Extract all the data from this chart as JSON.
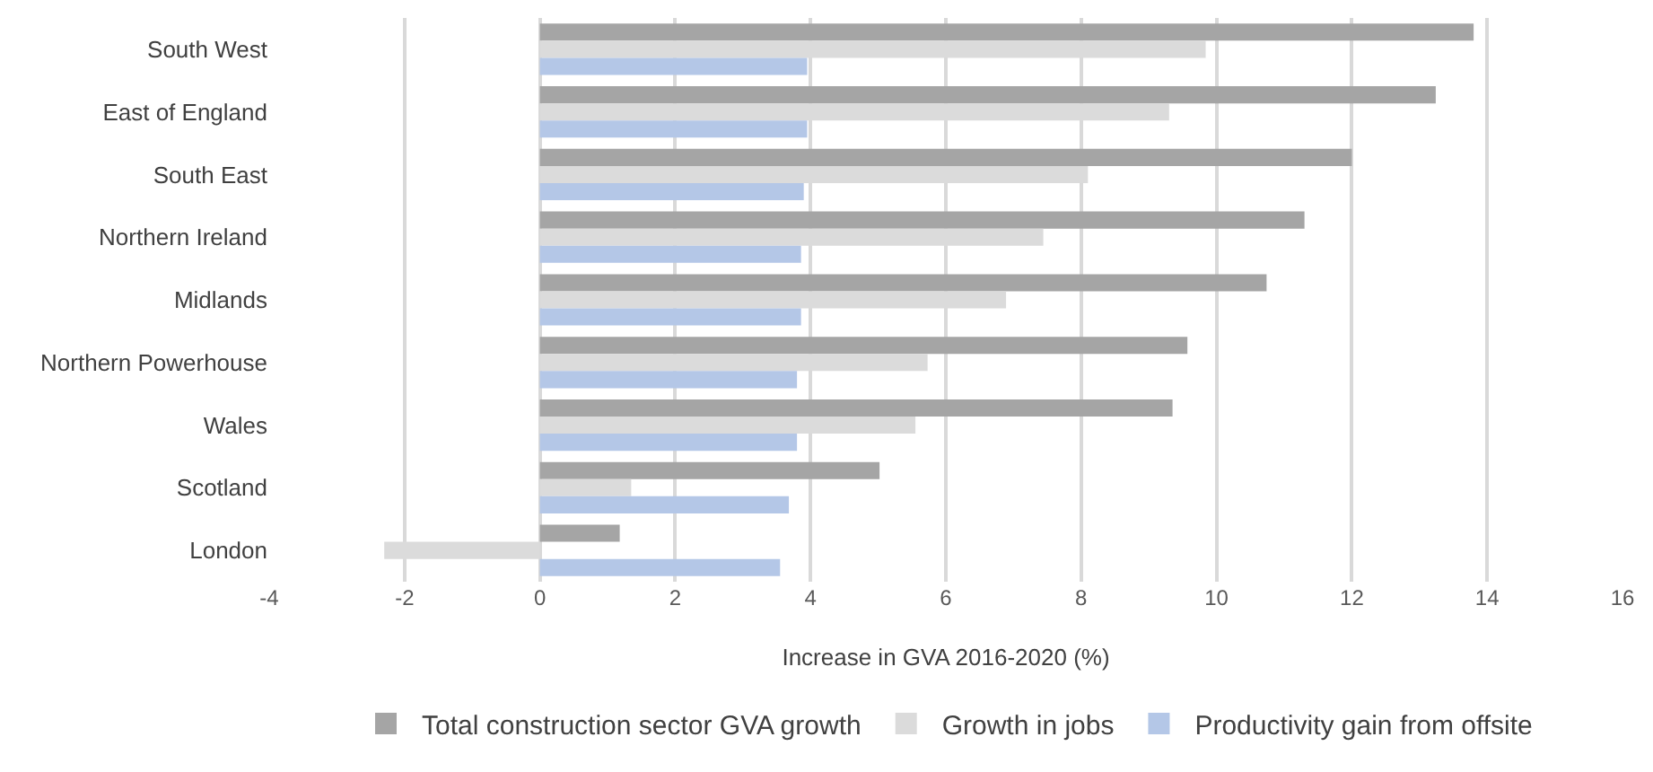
{
  "chart_data": {
    "type": "bar",
    "orientation": "horizontal",
    "xlabel": "Increase in GVA 2016-2020 (%)",
    "categories": [
      "South West",
      "East of England",
      "South East",
      "Northern Ireland",
      "Midlands",
      "Northern Powerhouse",
      "Wales",
      "Scotland",
      "London"
    ],
    "series": [
      {
        "name": "Total construction sector GVA growth",
        "color": "#a5a5a5",
        "values": [
          13.8,
          13.24,
          12.0,
          11.3,
          10.74,
          9.57,
          9.35,
          5.02,
          1.18
        ]
      },
      {
        "name": "Growth in jobs",
        "color": "#dbdbdb",
        "values": [
          9.84,
          9.3,
          8.1,
          7.44,
          6.89,
          5.73,
          5.55,
          1.35,
          -2.3
        ]
      },
      {
        "name": "Productivity gain from offsite",
        "color": "#b4c7e7",
        "values": [
          3.95,
          3.95,
          3.9,
          3.86,
          3.86,
          3.8,
          3.8,
          3.68,
          3.55
        ]
      }
    ],
    "xlim": [
      -4,
      16
    ],
    "xticks": [
      -4,
      -2,
      0,
      2,
      4,
      6,
      8,
      10,
      12,
      14,
      16
    ],
    "grid": "x",
    "legend": "bottom"
  }
}
